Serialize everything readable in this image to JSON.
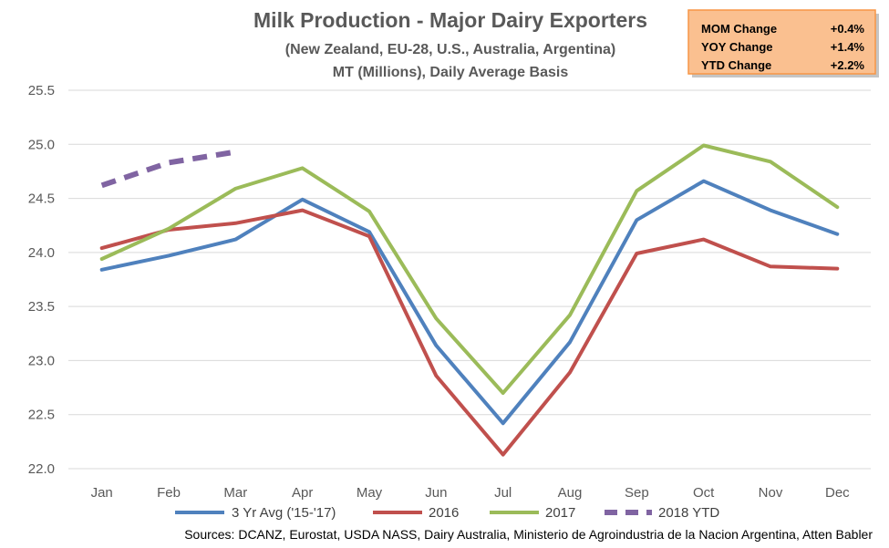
{
  "chart_data": {
    "type": "line",
    "title": "Milk Production - Major Dairy Exporters",
    "subtitle_1": "(New Zealand, EU-28, U.S., Australia,  Argentina)",
    "subtitle_2": "MT (Millions), Daily Average Basis",
    "categories": [
      "Jan",
      "Feb",
      "Mar",
      "Apr",
      "May",
      "Jun",
      "Jul",
      "Aug",
      "Sep",
      "Oct",
      "Nov",
      "Dec"
    ],
    "ylim": [
      22.0,
      25.5
    ],
    "yticks": [
      "22.0",
      "22.5",
      "23.0",
      "23.5",
      "24.0",
      "24.5",
      "25.0",
      "25.5"
    ],
    "grid": true,
    "legend_position": "bottom",
    "series": [
      {
        "name": "3 Yr Avg ('15-'17)",
        "color": "#4f81bd",
        "dashed": false,
        "values": [
          23.84,
          23.97,
          24.12,
          24.49,
          24.19,
          23.14,
          22.42,
          23.17,
          24.3,
          24.66,
          24.39,
          24.17
        ]
      },
      {
        "name": "2016",
        "color": "#c0504d",
        "dashed": false,
        "values": [
          24.04,
          24.21,
          24.27,
          24.39,
          24.15,
          22.86,
          22.13,
          22.89,
          23.99,
          24.12,
          23.87,
          23.85
        ]
      },
      {
        "name": "2017",
        "color": "#9bbb59",
        "dashed": false,
        "values": [
          23.94,
          24.22,
          24.59,
          24.78,
          24.38,
          23.39,
          22.7,
          23.42,
          24.57,
          24.99,
          24.84,
          24.42
        ]
      },
      {
        "name": "2018 YTD",
        "color": "#8064a2",
        "dashed": true,
        "values": [
          24.62,
          24.83,
          24.93,
          null,
          null,
          null,
          null,
          null,
          null,
          null,
          null,
          null
        ]
      }
    ],
    "source": "Sources: DCANZ, Eurostat, USDA NASS, Dairy Australia, Ministerio de Agroindustria de la Nacion Argentina, Atten Babler"
  },
  "change_box": {
    "fill": "#fac090",
    "rows": [
      {
        "label": "MOM Change",
        "value": "+0.4%"
      },
      {
        "label": "YOY Change",
        "value": "+1.4%"
      },
      {
        "label": "YTD Change",
        "value": "+2.2%"
      }
    ]
  }
}
